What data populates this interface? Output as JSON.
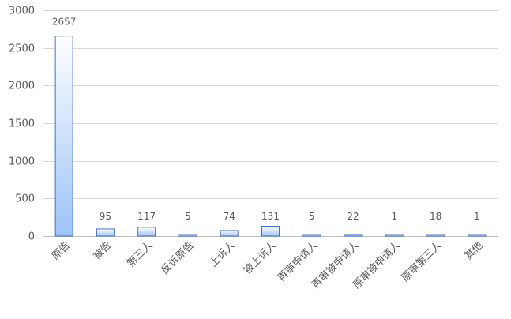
{
  "chart_data": {
    "type": "bar",
    "categories": [
      "原告",
      "被告",
      "第三人",
      "反诉原告",
      "上诉人",
      "被上诉人",
      "再审申请人",
      "再审被申请人",
      "原审被申请人",
      "原审第三人",
      "其他"
    ],
    "values": [
      2657,
      95,
      117,
      5,
      74,
      131,
      5,
      22,
      1,
      18,
      1
    ],
    "data_labels": [
      "2657",
      "95",
      "117",
      "5",
      "74",
      "131",
      "5",
      "22",
      "1",
      "18",
      "1"
    ],
    "ylim": [
      0,
      3000
    ],
    "y_ticks": [
      0,
      500,
      1000,
      1500,
      2000,
      2500,
      3000
    ],
    "y_tick_labels": [
      "0",
      "500",
      "1000",
      "1500",
      "2000",
      "2500",
      "3000"
    ],
    "grid": true,
    "legend": "none",
    "title": "",
    "xlabel": "",
    "ylabel": "",
    "colors": {
      "bar_top": "#ffffff",
      "bar_bottom": "#9dc3f7",
      "bar_edge": "#4472c4",
      "grid": "#d9d9d9",
      "text": "#595959"
    }
  }
}
